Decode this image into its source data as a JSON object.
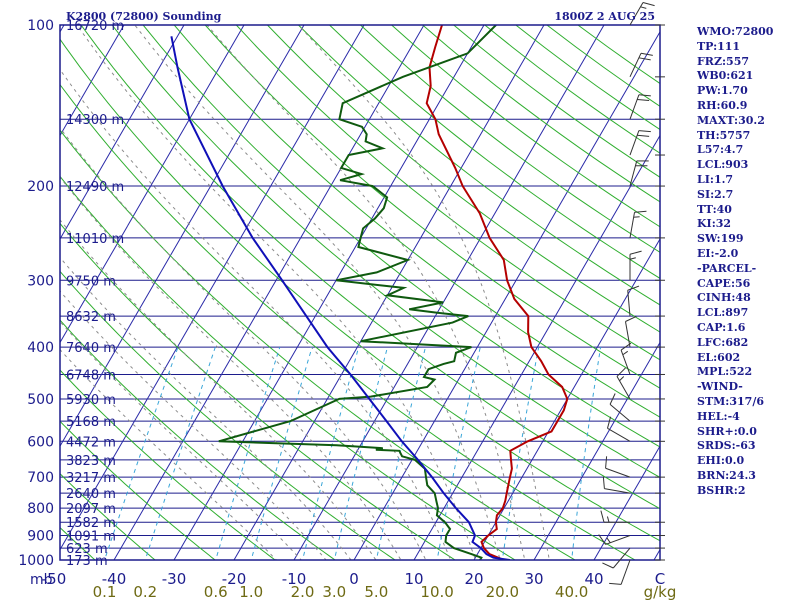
{
  "chart_data": {
    "type": "line",
    "title": "K2800 (72800) Sounding",
    "valid_time": "1800Z 2 AUG 25",
    "pressure_axis": {
      "unit_label": "mb",
      "ticks": [
        100,
        200,
        300,
        400,
        500,
        600,
        700,
        800,
        900,
        1000
      ],
      "range": [
        100,
        1000
      ],
      "scale": "log"
    },
    "temperature_axis": {
      "ticks": [
        -50,
        -40,
        -30,
        -20,
        -10,
        0,
        10,
        20,
        30,
        40
      ],
      "unit_label": "C",
      "range": [
        -50,
        50
      ]
    },
    "mixing_ratio_axis": {
      "unit_label": "g/kg",
      "ticks": [
        "0.1",
        "0.2",
        "0.6",
        "1.0",
        "2.0",
        "3.0",
        "5.0",
        "10.0",
        "20.0",
        "40.0"
      ]
    },
    "height_labels": [
      {
        "p": 100,
        "label": "16720 m"
      },
      {
        "p": 150,
        "label": "14300 m"
      },
      {
        "p": 200,
        "label": "12490 m"
      },
      {
        "p": 250,
        "label": "11010 m"
      },
      {
        "p": 300,
        "label": "9750 m"
      },
      {
        "p": 350,
        "label": "8632 m"
      },
      {
        "p": 400,
        "label": "7640 m"
      },
      {
        "p": 450,
        "label": "6748 m"
      },
      {
        "p": 500,
        "label": "5930 m"
      },
      {
        "p": 550,
        "label": "5168 m"
      },
      {
        "p": 600,
        "label": "4472 m"
      },
      {
        "p": 650,
        "label": "3823 m"
      },
      {
        "p": 700,
        "label": "3217 m"
      },
      {
        "p": 750,
        "label": "2640 m"
      },
      {
        "p": 800,
        "label": "2097 m"
      },
      {
        "p": 850,
        "label": "1582 m"
      },
      {
        "p": 900,
        "label": "1091 m"
      },
      {
        "p": 950,
        "label": "623 m"
      },
      {
        "p": 1000,
        "label": "173 m"
      }
    ],
    "series": [
      {
        "key": "temperature",
        "points": [
          [
            1013,
            29
          ],
          [
            1000,
            25
          ],
          [
            975,
            22
          ],
          [
            950,
            20.5
          ],
          [
            925,
            19.5
          ],
          [
            900,
            20
          ],
          [
            875,
            20.8
          ],
          [
            850,
            20
          ],
          [
            825,
            19.5
          ],
          [
            800,
            19.8
          ],
          [
            775,
            19.5
          ],
          [
            750,
            19
          ],
          [
            725,
            18.5
          ],
          [
            700,
            18
          ],
          [
            675,
            17.5
          ],
          [
            650,
            16.5
          ],
          [
            625,
            15.5
          ],
          [
            600,
            17.5
          ],
          [
            575,
            20.5
          ],
          [
            550,
            20.5
          ],
          [
            525,
            20.5
          ],
          [
            500,
            20
          ],
          [
            475,
            18
          ],
          [
            450,
            14.5
          ],
          [
            425,
            12
          ],
          [
            400,
            9
          ],
          [
            375,
            7
          ],
          [
            350,
            5.5
          ],
          [
            325,
            1.5
          ],
          [
            300,
            -1.5
          ],
          [
            275,
            -4
          ],
          [
            250,
            -8.5
          ],
          [
            225,
            -12.5
          ],
          [
            200,
            -18
          ],
          [
            185,
            -21
          ],
          [
            170,
            -24.5
          ],
          [
            160,
            -27
          ],
          [
            150,
            -29
          ],
          [
            140,
            -32
          ],
          [
            130,
            -33
          ],
          [
            120,
            -35
          ],
          [
            110,
            -36
          ],
          [
            100,
            -37
          ]
        ]
      },
      {
        "key": "dewpoint",
        "points": [
          [
            1000,
            21
          ],
          [
            990,
            21
          ],
          [
            975,
            19
          ],
          [
            950,
            15.5
          ],
          [
            925,
            13.5
          ],
          [
            900,
            13
          ],
          [
            875,
            13
          ],
          [
            850,
            11.5
          ],
          [
            825,
            9.5
          ],
          [
            800,
            9
          ],
          [
            775,
            8
          ],
          [
            750,
            7
          ],
          [
            725,
            5
          ],
          [
            700,
            4
          ],
          [
            675,
            3
          ],
          [
            650,
            0.5
          ],
          [
            640,
            -2
          ],
          [
            625,
            -3
          ],
          [
            622,
            -7
          ],
          [
            618,
            -6
          ],
          [
            610,
            -14
          ],
          [
            600,
            -34
          ],
          [
            550,
            -24
          ],
          [
            500,
            -18
          ],
          [
            495,
            -13
          ],
          [
            475,
            -4.5
          ],
          [
            460,
            -4
          ],
          [
            455,
            -6
          ],
          [
            440,
            -6
          ],
          [
            430,
            -4
          ],
          [
            425,
            -2.5
          ],
          [
            410,
            -3
          ],
          [
            400,
            -1
          ],
          [
            390,
            -20
          ],
          [
            360,
            -6.5
          ],
          [
            350,
            -4.5
          ],
          [
            345,
            -10
          ],
          [
            340,
            -15
          ],
          [
            330,
            -10
          ],
          [
            320,
            -20
          ],
          [
            310,
            -18
          ],
          [
            300,
            -30
          ],
          [
            290,
            -24
          ],
          [
            275,
            -20
          ],
          [
            260,
            -29.5
          ],
          [
            250,
            -30
          ],
          [
            240,
            -30.5
          ],
          [
            230,
            -29.5
          ],
          [
            220,
            -29
          ],
          [
            210,
            -29.5
          ],
          [
            200,
            -33
          ],
          [
            195,
            -39
          ],
          [
            190,
            -36
          ],
          [
            185,
            -40
          ],
          [
            175,
            -40
          ],
          [
            170,
            -35
          ],
          [
            165,
            -38.5
          ],
          [
            160,
            -39
          ],
          [
            155,
            -40.5
          ],
          [
            150,
            -45
          ],
          [
            140,
            -46
          ],
          [
            125,
            -38.5
          ],
          [
            113,
            -30
          ],
          [
            100,
            -28
          ]
        ]
      },
      {
        "key": "parcel",
        "points": [
          [
            1000,
            26
          ],
          [
            990,
            23
          ],
          [
            975,
            21.5
          ],
          [
            950,
            20
          ],
          [
            925,
            18
          ],
          [
            900,
            17.8
          ],
          [
            850,
            15.5
          ],
          [
            800,
            12
          ],
          [
            750,
            8.5
          ],
          [
            700,
            5
          ],
          [
            650,
            1
          ],
          [
            600,
            -3.5
          ],
          [
            550,
            -8
          ],
          [
            500,
            -13
          ],
          [
            450,
            -18.5
          ],
          [
            400,
            -25
          ],
          [
            350,
            -31.5
          ],
          [
            300,
            -39
          ],
          [
            250,
            -48
          ],
          [
            200,
            -58
          ],
          [
            150,
            -70
          ],
          [
            120,
            -77
          ],
          [
            105,
            -81
          ]
        ]
      }
    ],
    "wind_barbs": [
      {
        "p": 1000,
        "dir": 200,
        "kt": 12
      },
      {
        "p": 950,
        "dir": 220,
        "kt": 14
      },
      {
        "p": 900,
        "dir": 250,
        "kt": 16
      },
      {
        "p": 850,
        "dir": 270,
        "kt": 18
      },
      {
        "p": 750,
        "dir": 280,
        "kt": 14
      },
      {
        "p": 700,
        "dir": 290,
        "kt": 12
      },
      {
        "p": 600,
        "dir": 300,
        "kt": 10
      },
      {
        "p": 550,
        "dir": 310,
        "kt": 14
      },
      {
        "p": 500,
        "dir": 330,
        "kt": 16
      },
      {
        "p": 450,
        "dir": 340,
        "kt": 18
      },
      {
        "p": 400,
        "dir": 350,
        "kt": 14
      },
      {
        "p": 350,
        "dir": 355,
        "kt": 12
      },
      {
        "p": 300,
        "dir": 360,
        "kt": 16
      },
      {
        "p": 250,
        "dir": 10,
        "kt": 18
      },
      {
        "p": 200,
        "dir": 15,
        "kt": 20
      },
      {
        "p": 175,
        "dir": 20,
        "kt": 20
      },
      {
        "p": 150,
        "dir": 20,
        "kt": 22
      },
      {
        "p": 125,
        "dir": 25,
        "kt": 20
      },
      {
        "p": 100,
        "dir": 30,
        "kt": 18
      }
    ],
    "grid": true
  },
  "indices": [
    "WMO:72800",
    "TP:111",
    "FRZ:557",
    "WB0:621",
    "PW:1.70",
    "RH:60.9",
    "MAXT:30.2",
    "TH:5757",
    "L57:4.7",
    "LCL:903",
    "LI:1.7",
    "SI:2.7",
    "TT:40",
    "KI:32",
    "SW:199",
    "EI:-2.0",
    "-PARCEL-",
    "CAPE:56",
    "CINH:48",
    "LCL:897",
    "CAP:1.6",
    "LFC:682",
    "EL:602",
    "MPL:522",
    "-WIND-",
    "STM:317/6",
    "HEL:-4",
    "SHR+:0.0",
    "SRDS:-63",
    "EHI:0.0",
    "BRN:24.3",
    "BSHR:2"
  ],
  "colors": {
    "isobar": "#1c1c8c",
    "temperature": "#b40000",
    "dewpoint": "#0f5a0f",
    "parcel": "#1010b8",
    "dry_adiabat": "#2fae2f",
    "mixing_line": "#3aa6d8",
    "mixing_label": "#6e6a14"
  }
}
